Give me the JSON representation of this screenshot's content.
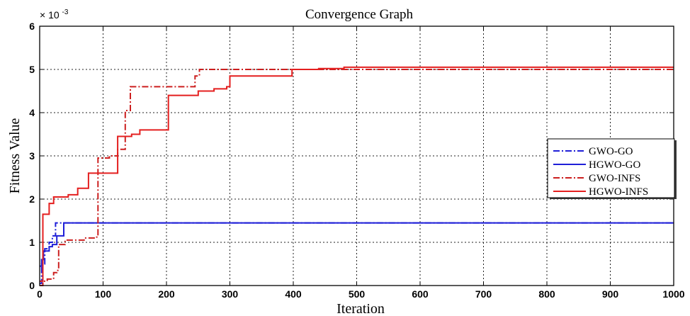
{
  "chart_data": {
    "type": "line",
    "title": "Convergence Graph",
    "xlabel": "Iteration",
    "ylabel": "Fitness Value",
    "y_multiplier": "× 10",
    "y_multiplier_exp": "-3",
    "xlim": [
      0,
      1000
    ],
    "ylim": [
      0,
      6
    ],
    "x_ticks": [
      0,
      100,
      200,
      300,
      400,
      500,
      600,
      700,
      800,
      900,
      1000
    ],
    "y_ticks": [
      0,
      1,
      2,
      3,
      4,
      5,
      6
    ],
    "grid": true,
    "legend_position": "right",
    "series": [
      {
        "name": "GWO-GO",
        "color": "#1f1fd8",
        "style": "dashdot",
        "step": true,
        "points": [
          [
            0,
            0.05
          ],
          [
            3,
            0.5
          ],
          [
            8,
            0.85
          ],
          [
            15,
            1.0
          ],
          [
            20,
            1.15
          ],
          [
            25,
            1.45
          ],
          [
            1000,
            1.45
          ]
        ]
      },
      {
        "name": "HGWO-GO",
        "color": "#1f1fd8",
        "style": "solid",
        "step": true,
        "points": [
          [
            0,
            0.45
          ],
          [
            3,
            0.6
          ],
          [
            6,
            0.8
          ],
          [
            15,
            0.9
          ],
          [
            20,
            0.95
          ],
          [
            27,
            1.15
          ],
          [
            37,
            1.15
          ],
          [
            38,
            1.45
          ],
          [
            1000,
            1.45
          ]
        ]
      },
      {
        "name": "GWO-INFS",
        "color": "#cc1f1f",
        "style": "dashdot",
        "step": true,
        "points": [
          [
            0,
            0.0
          ],
          [
            5,
            0.1
          ],
          [
            12,
            0.15
          ],
          [
            22,
            0.3
          ],
          [
            27,
            0.35
          ],
          [
            30,
            0.95
          ],
          [
            40,
            1.05
          ],
          [
            60,
            1.05
          ],
          [
            70,
            1.1
          ],
          [
            90,
            1.15
          ],
          [
            92,
            2.95
          ],
          [
            110,
            3.0
          ],
          [
            123,
            3.15
          ],
          [
            135,
            4.05
          ],
          [
            143,
            4.6
          ],
          [
            208,
            4.6
          ],
          [
            240,
            4.6
          ],
          [
            245,
            4.85
          ],
          [
            252,
            5.0
          ],
          [
            410,
            5.0
          ],
          [
            1000,
            5.0
          ]
        ]
      },
      {
        "name": "HGWO-INFS",
        "color": "#e41f1f",
        "style": "solid",
        "step": true,
        "points": [
          [
            0,
            0.1
          ],
          [
            5,
            1.65
          ],
          [
            15,
            1.9
          ],
          [
            22,
            2.05
          ],
          [
            45,
            2.1
          ],
          [
            60,
            2.25
          ],
          [
            70,
            2.25
          ],
          [
            77,
            2.6
          ],
          [
            120,
            2.6
          ],
          [
            123,
            3.45
          ],
          [
            145,
            3.5
          ],
          [
            158,
            3.6
          ],
          [
            200,
            3.6
          ],
          [
            203,
            4.4
          ],
          [
            250,
            4.5
          ],
          [
            275,
            4.55
          ],
          [
            295,
            4.6
          ],
          [
            300,
            4.85
          ],
          [
            395,
            4.85
          ],
          [
            398,
            5.0
          ],
          [
            440,
            5.02
          ],
          [
            480,
            5.05
          ],
          [
            1000,
            5.05
          ]
        ]
      }
    ]
  }
}
